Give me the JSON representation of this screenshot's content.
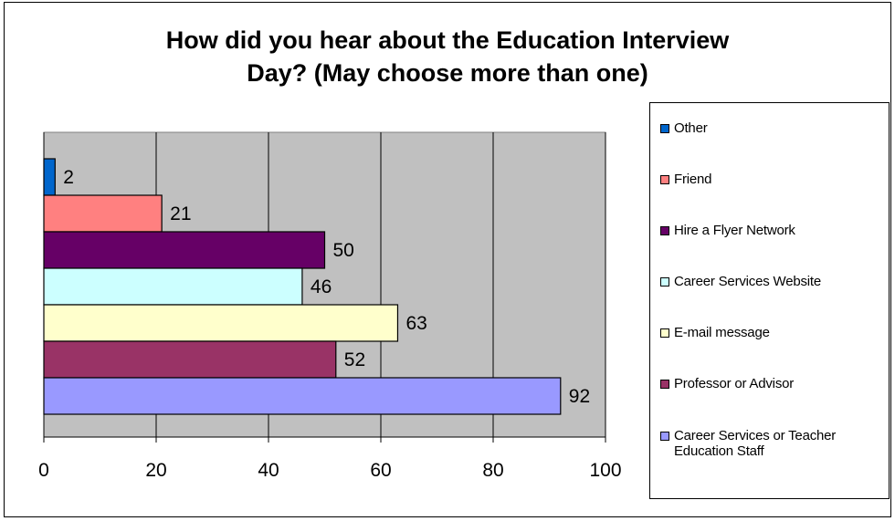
{
  "chart_data": {
    "type": "bar",
    "orientation": "horizontal",
    "title_lines": [
      "How did you hear about the Education Interview",
      "Day? (May choose more than one)"
    ],
    "categories": [
      "Other",
      "Friend",
      "Hire a Flyer Network",
      "Career Services Website",
      "E-mail message",
      "Professor or Advisor",
      "Career Services or Teacher Education Staff"
    ],
    "legend_labels": [
      [
        "Other"
      ],
      [
        "Friend"
      ],
      [
        "Hire a Flyer Network"
      ],
      [
        "Career Services Website"
      ],
      [
        "E-mail message"
      ],
      [
        "Professor or Advisor"
      ],
      [
        "Career Services or Teacher",
        "Education Staff"
      ]
    ],
    "values": [
      2,
      21,
      50,
      46,
      63,
      52,
      92
    ],
    "colors": [
      "#0066cc",
      "#ff8080",
      "#660066",
      "#ccffff",
      "#ffffcc",
      "#993366",
      "#9999ff"
    ],
    "xlim": [
      0,
      100
    ],
    "xticks": [
      0,
      20,
      40,
      60,
      80,
      100
    ],
    "grid": true,
    "plot_background": "#c0c0c0",
    "legend_position": "right"
  }
}
